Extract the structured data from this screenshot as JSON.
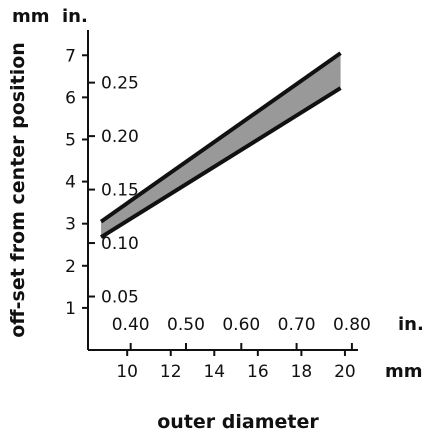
{
  "chart_data": {
    "type": "area",
    "title": "",
    "xlabel": "outer diameter",
    "ylabel": "off-set from center position",
    "x_unit_primary": "mm",
    "x_unit_secondary": "in.",
    "y_unit_primary": "mm",
    "y_unit_secondary": "in.",
    "xlim": [
      8.2,
      20.6
    ],
    "ylim": [
      0,
      7.6
    ],
    "x_ticks_mm": [
      "10",
      "12",
      "14",
      "16",
      "18",
      "20"
    ],
    "x_ticks_in": [
      "0.40",
      "0.50",
      "0.60",
      "0.70",
      "0.80"
    ],
    "y_ticks_mm": [
      "1",
      "2",
      "3",
      "4",
      "5",
      "6",
      "7"
    ],
    "y_ticks_in": [
      "0.05",
      "0.10",
      "0.15",
      "0.20",
      "0.25"
    ],
    "series": [
      {
        "x": [
          8.8,
          19.8
        ],
        "values": [
          3.05,
          7.05
        ]
      },
      {
        "x": [
          8.8,
          19.8
        ],
        "values": [
          2.68,
          6.22
        ]
      }
    ],
    "band_fill": "#999999",
    "line_color": "#111111"
  }
}
